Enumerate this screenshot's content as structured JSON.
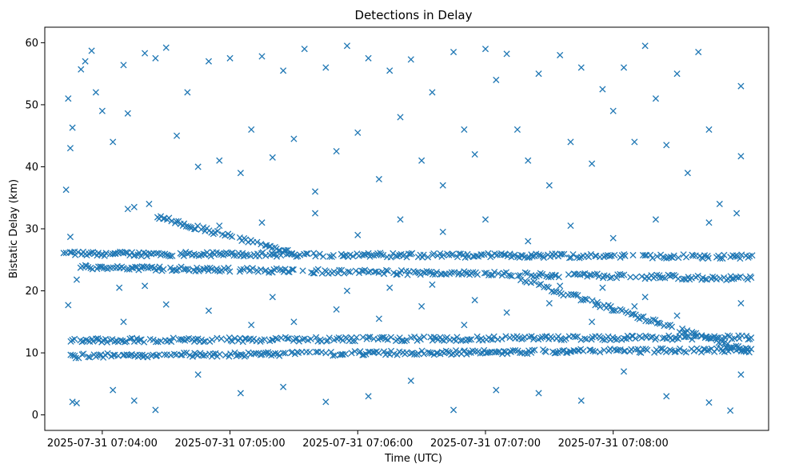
{
  "chart_data": {
    "type": "scatter",
    "title": "Detections in Delay",
    "xlabel": "Time (UTC)",
    "ylabel": "Bistatic Delay (km)",
    "marker": "x",
    "color": "#1f77b4",
    "xlim": [
      "2025-07-31 07:03:33",
      "2025-07-31 07:09:13"
    ],
    "ylim": [
      -2.5,
      62.5
    ],
    "x_ticks": [
      "2025-07-31 07:04:00",
      "2025-07-31 07:05:00",
      "2025-07-31 07:06:00",
      "2025-07-31 07:07:00",
      "2025-07-31 07:08:00"
    ],
    "y_ticks": [
      0,
      10,
      20,
      30,
      40,
      50,
      60
    ],
    "grid": false,
    "tracks": [
      {
        "from": [
          "2025-07-31 07:03:42",
          26.0
        ],
        "to": [
          "2025-07-31 07:09:05",
          25.5
        ]
      },
      {
        "from": [
          "2025-07-31 07:03:50",
          23.8
        ],
        "to": [
          "2025-07-31 07:09:05",
          22.0
        ]
      },
      {
        "from": [
          "2025-07-31 07:03:45",
          12.0
        ],
        "to": [
          "2025-07-31 07:09:05",
          12.5
        ]
      },
      {
        "from": [
          "2025-07-31 07:03:45",
          9.5
        ],
        "to": [
          "2025-07-31 07:09:05",
          10.5
        ]
      },
      {
        "from": [
          "2025-07-31 07:04:25",
          32.0
        ],
        "to": [
          "2025-07-31 07:05:30",
          26.0
        ]
      },
      {
        "from": [
          "2025-07-31 07:07:15",
          22.0
        ],
        "to": [
          "2025-07-31 07:09:05",
          10.0
        ]
      }
    ],
    "points": [
      [
        "2025-07-31 07:03:43",
        36.3
      ],
      [
        "2025-07-31 07:03:44",
        51.0
      ],
      [
        "2025-07-31 07:03:45",
        43.0
      ],
      [
        "2025-07-31 07:03:46",
        46.3
      ],
      [
        "2025-07-31 07:03:47",
        26.3
      ],
      [
        "2025-07-31 07:03:48",
        21.8
      ],
      [
        "2025-07-31 07:03:44",
        17.7
      ],
      [
        "2025-07-31 07:03:45",
        28.7
      ],
      [
        "2025-07-31 07:03:46",
        2.1
      ],
      [
        "2025-07-31 07:03:48",
        1.9
      ],
      [
        "2025-07-31 07:03:50",
        55.7
      ],
      [
        "2025-07-31 07:03:52",
        57.0
      ],
      [
        "2025-07-31 07:03:55",
        58.7
      ],
      [
        "2025-07-31 07:03:57",
        52.0
      ],
      [
        "2025-07-31 07:04:00",
        49.0
      ],
      [
        "2025-07-31 07:04:05",
        44.0
      ],
      [
        "2025-07-31 07:04:10",
        56.4
      ],
      [
        "2025-07-31 07:04:12",
        48.6
      ],
      [
        "2025-07-31 07:04:15",
        33.5
      ],
      [
        "2025-07-31 07:04:20",
        58.3
      ],
      [
        "2025-07-31 07:04:25",
        57.5
      ],
      [
        "2025-07-31 07:04:30",
        59.2
      ],
      [
        "2025-07-31 07:04:35",
        45.0
      ],
      [
        "2025-07-31 07:04:40",
        52.0
      ],
      [
        "2025-07-31 07:04:45",
        40.0
      ],
      [
        "2025-07-31 07:04:50",
        57.0
      ],
      [
        "2025-07-31 07:04:55",
        41.0
      ],
      [
        "2025-07-31 07:05:00",
        57.5
      ],
      [
        "2025-07-31 07:05:05",
        39.0
      ],
      [
        "2025-07-31 07:05:10",
        46.0
      ],
      [
        "2025-07-31 07:05:15",
        57.8
      ],
      [
        "2025-07-31 07:05:20",
        41.5
      ],
      [
        "2025-07-31 07:05:25",
        55.5
      ],
      [
        "2025-07-31 07:05:30",
        44.5
      ],
      [
        "2025-07-31 07:05:35",
        59.0
      ],
      [
        "2025-07-31 07:05:40",
        36.0
      ],
      [
        "2025-07-31 07:05:45",
        56.0
      ],
      [
        "2025-07-31 07:05:50",
        42.5
      ],
      [
        "2025-07-31 07:05:55",
        59.5
      ],
      [
        "2025-07-31 07:06:00",
        45.5
      ],
      [
        "2025-07-31 07:06:05",
        57.5
      ],
      [
        "2025-07-31 07:06:10",
        38.0
      ],
      [
        "2025-07-31 07:06:15",
        55.5
      ],
      [
        "2025-07-31 07:06:20",
        48.0
      ],
      [
        "2025-07-31 07:06:25",
        57.3
      ],
      [
        "2025-07-31 07:06:30",
        41.0
      ],
      [
        "2025-07-31 07:06:35",
        52.0
      ],
      [
        "2025-07-31 07:06:40",
        37.0
      ],
      [
        "2025-07-31 07:06:45",
        58.5
      ],
      [
        "2025-07-31 07:06:50",
        46.0
      ],
      [
        "2025-07-31 07:06:55",
        42.0
      ],
      [
        "2025-07-31 07:07:00",
        59.0
      ],
      [
        "2025-07-31 07:07:05",
        54.0
      ],
      [
        "2025-07-31 07:07:10",
        58.2
      ],
      [
        "2025-07-31 07:07:15",
        46.0
      ],
      [
        "2025-07-31 07:07:20",
        41.0
      ],
      [
        "2025-07-31 07:07:25",
        55.0
      ],
      [
        "2025-07-31 07:07:30",
        37.0
      ],
      [
        "2025-07-31 07:07:35",
        58.0
      ],
      [
        "2025-07-31 07:07:40",
        44.0
      ],
      [
        "2025-07-31 07:07:45",
        56.0
      ],
      [
        "2025-07-31 07:07:50",
        40.5
      ],
      [
        "2025-07-31 07:07:55",
        52.5
      ],
      [
        "2025-07-31 07:08:00",
        49.0
      ],
      [
        "2025-07-31 07:08:05",
        56.0
      ],
      [
        "2025-07-31 07:08:10",
        44.0
      ],
      [
        "2025-07-31 07:08:15",
        59.5
      ],
      [
        "2025-07-31 07:08:20",
        51.0
      ],
      [
        "2025-07-31 07:08:25",
        43.5
      ],
      [
        "2025-07-31 07:08:30",
        55.0
      ],
      [
        "2025-07-31 07:08:35",
        39.0
      ],
      [
        "2025-07-31 07:08:40",
        58.5
      ],
      [
        "2025-07-31 07:08:45",
        46.0
      ],
      [
        "2025-07-31 07:08:50",
        34.0
      ],
      [
        "2025-07-31 07:09:00",
        53.0
      ],
      [
        "2025-07-31 07:09:00",
        41.7
      ],
      [
        "2025-07-31 07:09:00",
        18.0
      ],
      [
        "2025-07-31 07:08:58",
        32.5
      ],
      [
        "2025-07-31 07:04:05",
        4.0
      ],
      [
        "2025-07-31 07:04:15",
        2.3
      ],
      [
        "2025-07-31 07:04:25",
        0.8
      ],
      [
        "2025-07-31 07:04:45",
        6.5
      ],
      [
        "2025-07-31 07:05:05",
        3.5
      ],
      [
        "2025-07-31 07:05:25",
        4.5
      ],
      [
        "2025-07-31 07:05:45",
        2.1
      ],
      [
        "2025-07-31 07:06:05",
        3.0
      ],
      [
        "2025-07-31 07:06:25",
        5.5
      ],
      [
        "2025-07-31 07:06:45",
        0.8
      ],
      [
        "2025-07-31 07:07:05",
        4.0
      ],
      [
        "2025-07-31 07:07:25",
        3.5
      ],
      [
        "2025-07-31 07:07:45",
        2.3
      ],
      [
        "2025-07-31 07:08:05",
        7.0
      ],
      [
        "2025-07-31 07:08:25",
        3.0
      ],
      [
        "2025-07-31 07:08:45",
        2.0
      ],
      [
        "2025-07-31 07:08:55",
        0.7
      ],
      [
        "2025-07-31 07:09:00",
        6.5
      ],
      [
        "2025-07-31 07:04:10",
        15.0
      ],
      [
        "2025-07-31 07:04:30",
        17.8
      ],
      [
        "2025-07-31 07:04:50",
        16.8
      ],
      [
        "2025-07-31 07:05:10",
        14.5
      ],
      [
        "2025-07-31 07:05:30",
        15.0
      ],
      [
        "2025-07-31 07:05:50",
        17.0
      ],
      [
        "2025-07-31 07:06:10",
        15.5
      ],
      [
        "2025-07-31 07:06:30",
        17.5
      ],
      [
        "2025-07-31 07:06:50",
        14.5
      ],
      [
        "2025-07-31 07:07:10",
        16.5
      ],
      [
        "2025-07-31 07:07:30",
        18.0
      ],
      [
        "2025-07-31 07:07:50",
        15.0
      ],
      [
        "2025-07-31 07:08:10",
        17.5
      ],
      [
        "2025-07-31 07:08:30",
        16.0
      ],
      [
        "2025-07-31 07:04:12",
        33.2
      ],
      [
        "2025-07-31 07:04:22",
        34.0
      ],
      [
        "2025-07-31 07:04:55",
        30.5
      ],
      [
        "2025-07-31 07:05:15",
        31.0
      ],
      [
        "2025-07-31 07:05:40",
        32.5
      ],
      [
        "2025-07-31 07:06:00",
        29.0
      ],
      [
        "2025-07-31 07:06:20",
        31.5
      ],
      [
        "2025-07-31 07:06:40",
        29.5
      ],
      [
        "2025-07-31 07:07:00",
        31.5
      ],
      [
        "2025-07-31 07:07:20",
        28.0
      ],
      [
        "2025-07-31 07:07:40",
        30.5
      ],
      [
        "2025-07-31 07:08:00",
        28.5
      ],
      [
        "2025-07-31 07:08:20",
        31.5
      ],
      [
        "2025-07-31 07:08:45",
        31.0
      ],
      [
        "2025-07-31 07:04:08",
        20.5
      ],
      [
        "2025-07-31 07:04:20",
        20.8
      ],
      [
        "2025-07-31 07:05:20",
        19.0
      ],
      [
        "2025-07-31 07:05:55",
        20.0
      ],
      [
        "2025-07-31 07:06:15",
        20.5
      ],
      [
        "2025-07-31 07:06:35",
        21.0
      ],
      [
        "2025-07-31 07:06:55",
        18.5
      ],
      [
        "2025-07-31 07:07:35",
        20.8
      ],
      [
        "2025-07-31 07:07:55",
        20.5
      ],
      [
        "2025-07-31 07:08:15",
        19.0
      ]
    ]
  }
}
